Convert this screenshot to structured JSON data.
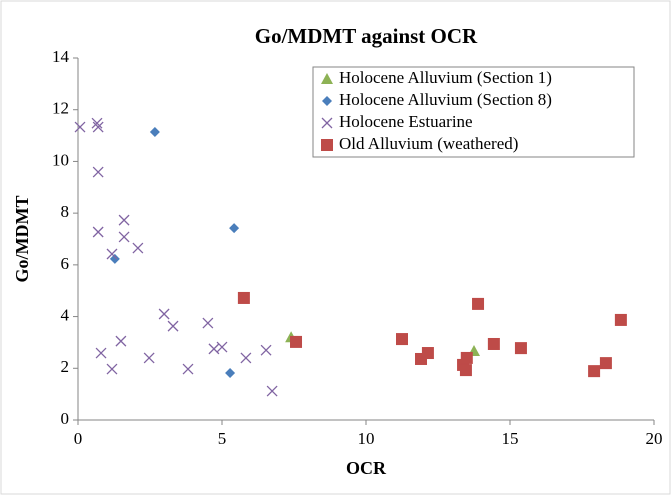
{
  "chart_data": {
    "type": "scatter",
    "title": "Go/MDMT against OCR",
    "xlabel": "OCR",
    "ylabel": "Go/MDMT",
    "xlim": [
      0,
      20
    ],
    "ylim": [
      0,
      14
    ],
    "xticks": [
      0,
      5,
      10,
      15,
      20
    ],
    "yticks": [
      0,
      2,
      4,
      6,
      8,
      10,
      12,
      14
    ],
    "legend": "upper right",
    "series": [
      {
        "name": "Holocene Alluvium (Section 1)",
        "color": "#8db255",
        "marker": "triangle",
        "x": [
          7.4,
          13.75
        ],
        "y": [
          3.2,
          2.67
        ]
      },
      {
        "name": "Holocene Alluvium (Section 8)",
        "color": "#4a7ebb",
        "marker": "diamond",
        "x": [
          2.67,
          5.42,
          1.28,
          5.28
        ],
        "y": [
          11.14,
          7.42,
          6.23,
          1.82
        ]
      },
      {
        "name": "Holocene Estuarine",
        "color": "#8064a2",
        "marker": "x",
        "x": [
          0.07,
          0.66,
          0.7,
          0.7,
          0.7,
          1.6,
          1.6,
          2.08,
          1.18,
          0.8,
          1.49,
          1.18,
          2.47,
          2.99,
          3.3,
          3.82,
          4.51,
          4.72,
          5.0,
          5.83,
          6.53,
          6.74
        ],
        "y": [
          11.33,
          11.48,
          11.33,
          9.59,
          7.27,
          7.73,
          7.08,
          6.65,
          6.42,
          2.59,
          3.05,
          1.97,
          2.4,
          4.1,
          3.63,
          1.97,
          3.75,
          2.75,
          2.82,
          2.4,
          2.7,
          1.12
        ]
      },
      {
        "name": "Old Alluvium (weathered)",
        "color": "#be4b48",
        "marker": "square",
        "x": [
          5.76,
          7.57,
          11.25,
          11.91,
          12.15,
          13.37,
          13.47,
          13.5,
          13.89,
          14.44,
          15.38,
          17.92,
          18.33,
          18.85
        ],
        "y": [
          4.72,
          3.02,
          3.13,
          2.36,
          2.59,
          2.13,
          1.93,
          2.4,
          4.49,
          2.94,
          2.78,
          1.89,
          2.2,
          3.87
        ]
      }
    ]
  }
}
